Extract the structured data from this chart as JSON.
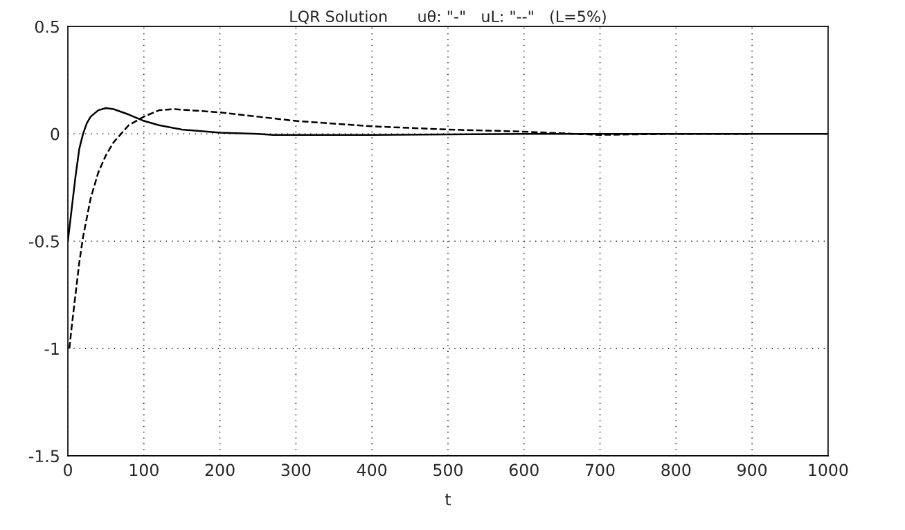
{
  "chart_data": {
    "type": "line",
    "title": "LQR Solution      uθ: \"-\"   uL: \"--\"   (L=5%)",
    "xlabel": "t",
    "xlim": [
      0,
      1000
    ],
    "ylim": [
      -1.5,
      0.5
    ],
    "xticks": [
      0,
      100,
      200,
      300,
      400,
      500,
      600,
      700,
      800,
      900,
      1000
    ],
    "yticks": [
      0.5,
      0,
      -0.5,
      -1,
      -1.5
    ],
    "grid": true,
    "marker": "none",
    "series": [
      {
        "color": "#000000",
        "line_style": "solid",
        "x": [
          0,
          5,
          10,
          15,
          20,
          25,
          30,
          40,
          50,
          60,
          80,
          100,
          120,
          150,
          200,
          250,
          270,
          400,
          600,
          1000
        ],
        "values": [
          -0.5,
          -0.35,
          -0.2,
          -0.07,
          0.0,
          0.05,
          0.08,
          0.11,
          0.12,
          0.115,
          0.09,
          0.06,
          0.04,
          0.02,
          0.005,
          0.0,
          -0.005,
          -0.005,
          0.0,
          0.0
        ]
      },
      {
        "color": "#000000",
        "line_style": "dashed",
        "x": [
          2,
          5,
          10,
          15,
          20,
          30,
          40,
          50,
          60,
          70,
          80,
          100,
          120,
          140,
          160,
          200,
          250,
          300,
          400,
          500,
          600,
          700,
          800,
          900
        ],
        "values": [
          -1.0,
          -0.9,
          -0.75,
          -0.6,
          -0.48,
          -0.3,
          -0.18,
          -0.1,
          -0.04,
          0.0,
          0.04,
          0.08,
          0.11,
          0.115,
          0.11,
          0.1,
          0.08,
          0.06,
          0.035,
          0.02,
          0.01,
          -0.005,
          0.0,
          0.0
        ]
      }
    ]
  }
}
